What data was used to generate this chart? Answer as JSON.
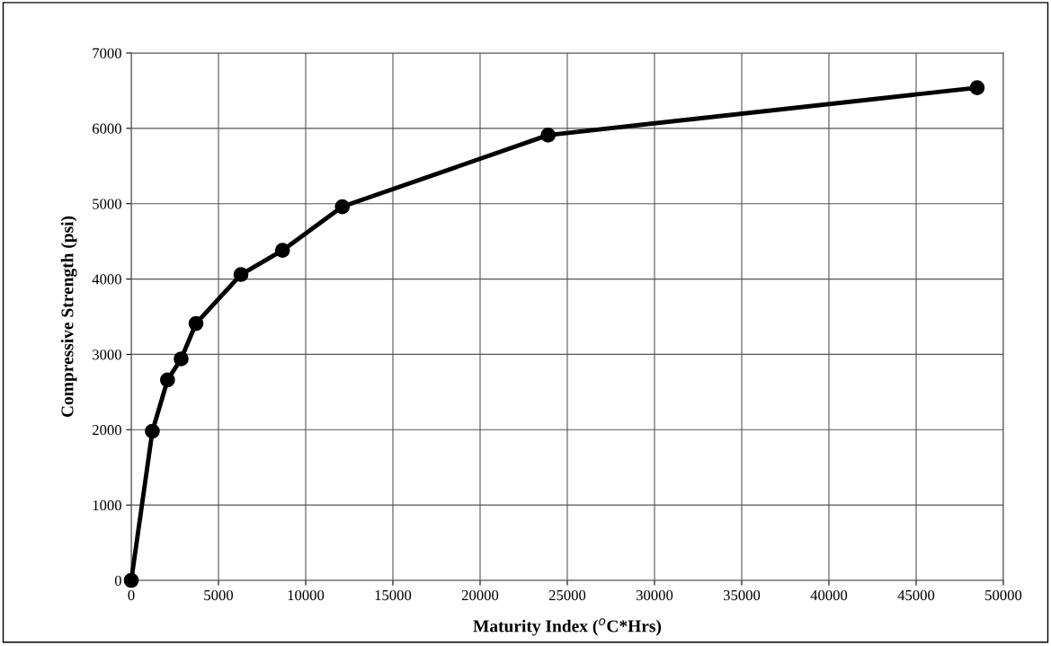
{
  "chart_data": {
    "type": "line",
    "xlabel": "Maturity Index ($^{o}$C*Hrs)",
    "ylabel": "Compressive Strength (psi)",
    "x": [
      0,
      1210,
      2080,
      2860,
      3710,
      6290,
      8670,
      12100,
      23900,
      48500
    ],
    "series": [
      {
        "color": "#000000",
        "values": [
          0,
          1980,
          2660,
          2940,
          3410,
          4060,
          4380,
          4960,
          5910,
          6540
        ]
      }
    ],
    "xlim": [
      0,
      50000
    ],
    "xticks": [
      0,
      5000,
      10000,
      15000,
      20000,
      25000,
      30000,
      35000,
      40000,
      45000,
      50000
    ],
    "ylim": [
      0,
      7000
    ],
    "yticks": [
      0,
      1000,
      2000,
      3000,
      4000,
      5000,
      6000,
      7000
    ],
    "grid": true,
    "marker": "circle",
    "line_style": "solid"
  }
}
